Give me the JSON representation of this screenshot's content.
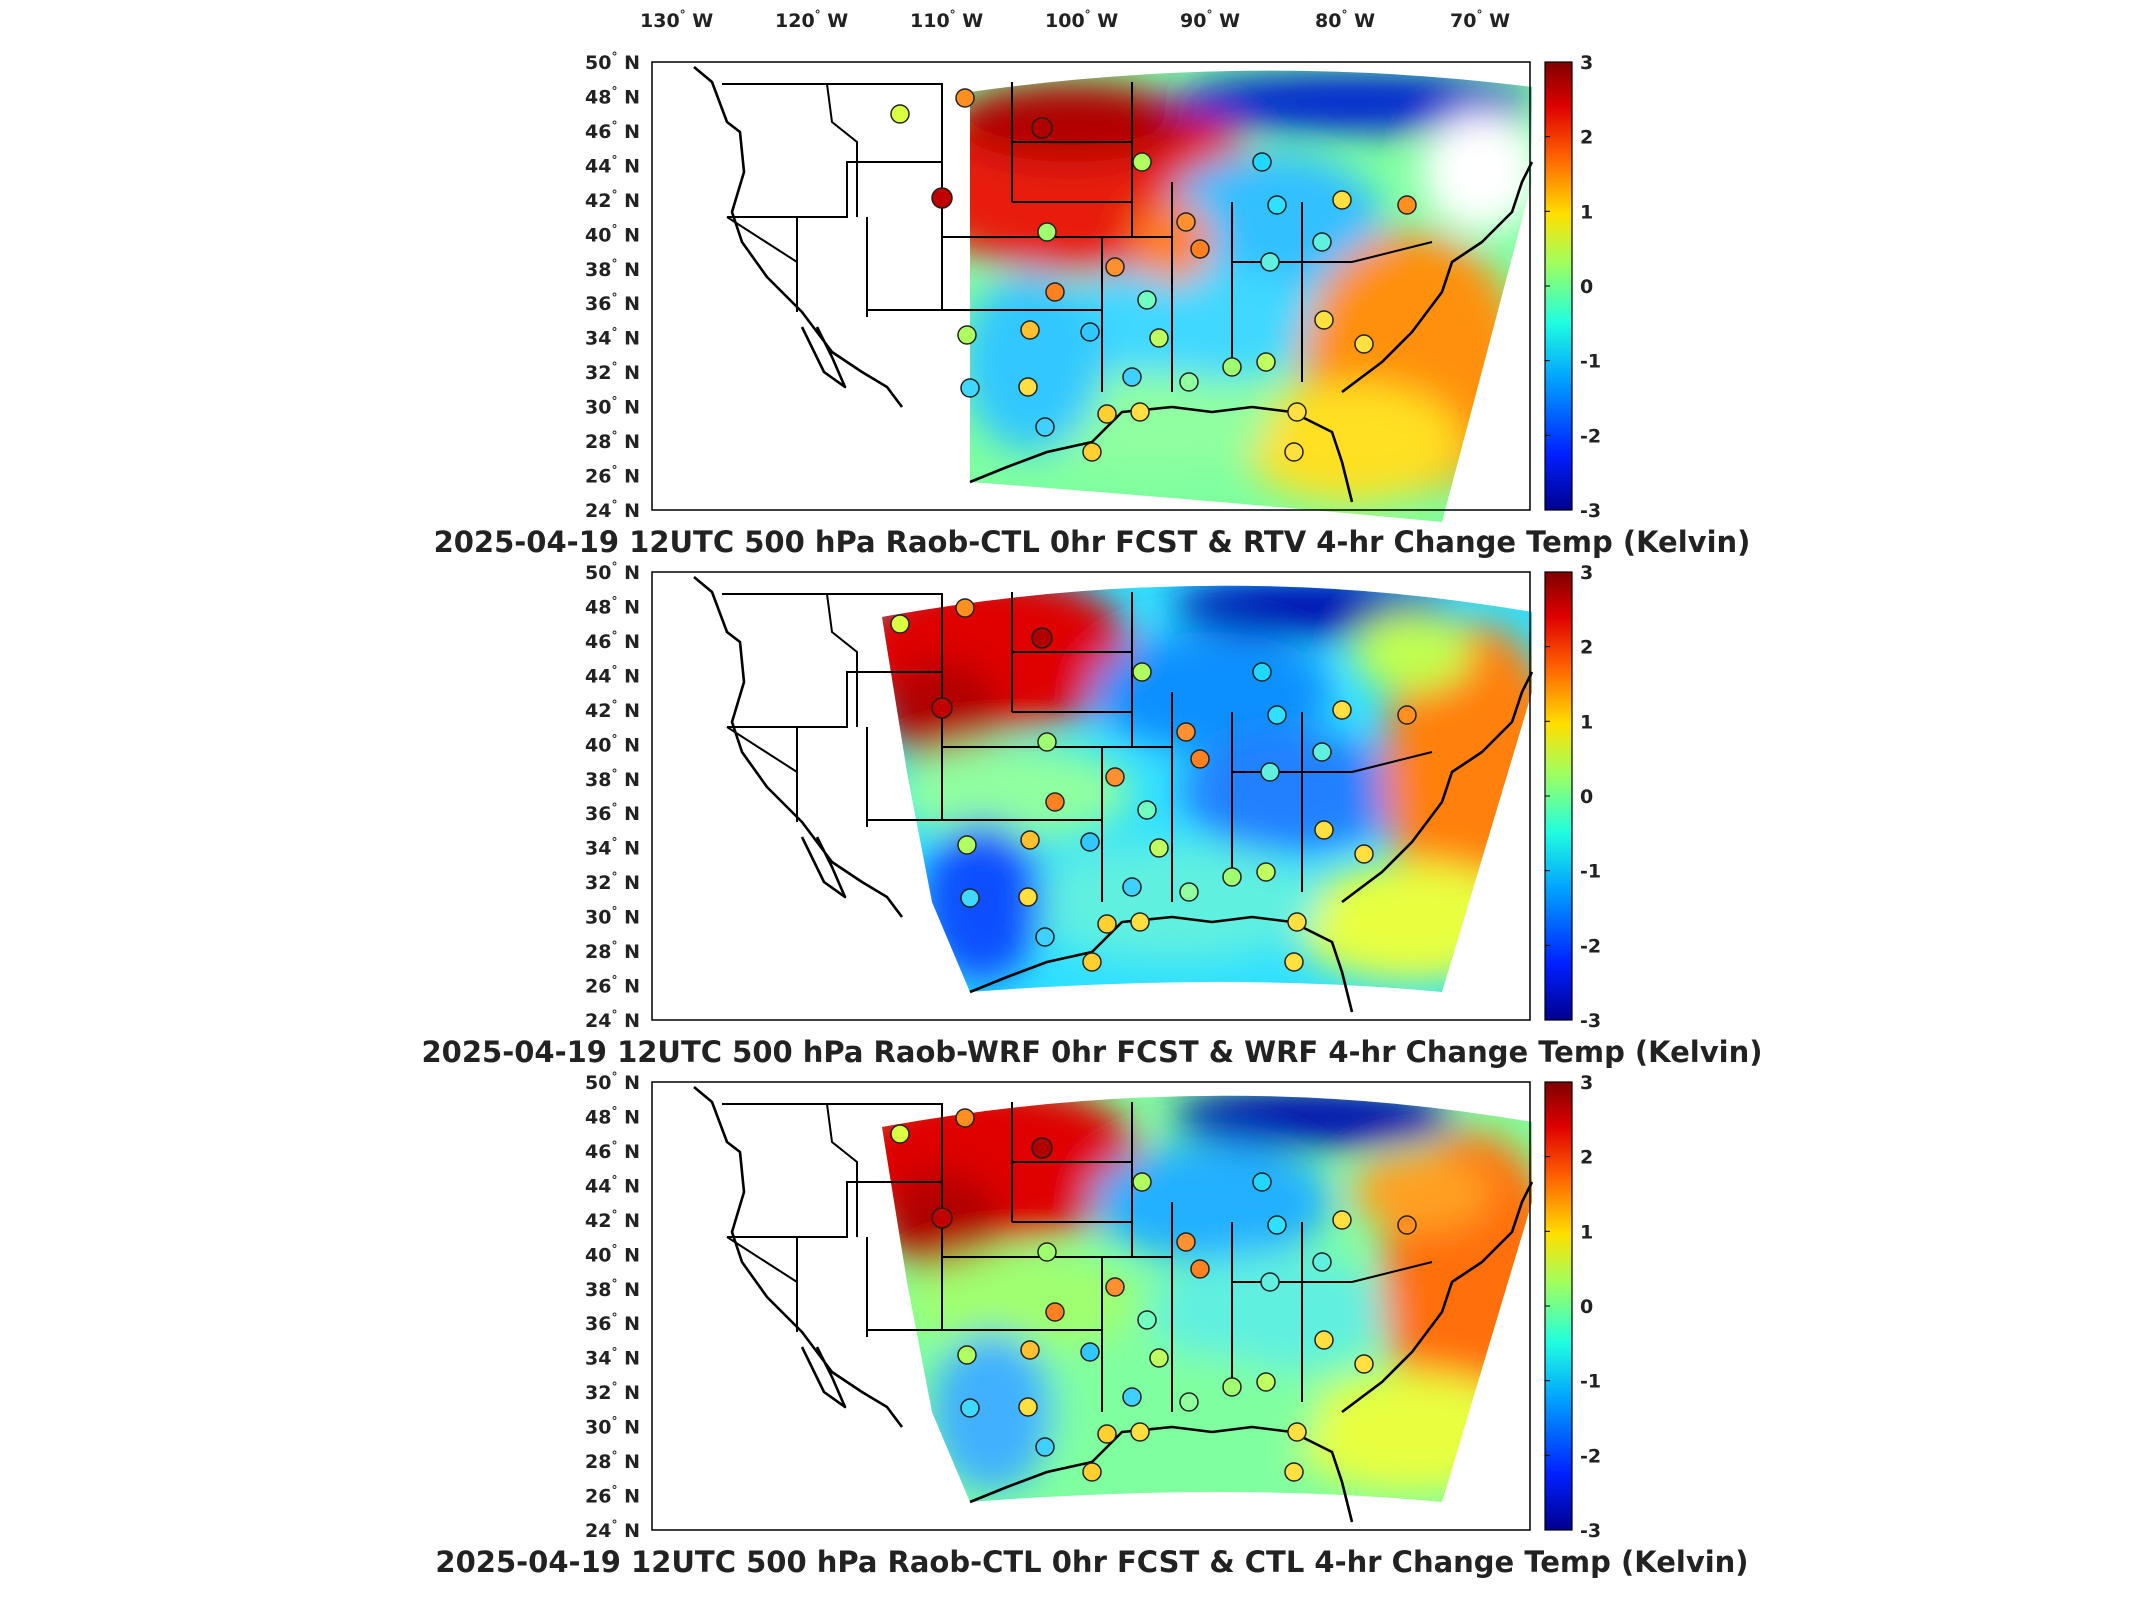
{
  "lon_labels": [
    {
      "deg": "130",
      "hem": "W"
    },
    {
      "deg": "120",
      "hem": "W"
    },
    {
      "deg": "110",
      "hem": "W"
    },
    {
      "deg": "100",
      "hem": "W"
    },
    {
      "deg": "90",
      "hem": "W"
    },
    {
      "deg": "80",
      "hem": "W"
    },
    {
      "deg": "70",
      "hem": "W"
    }
  ],
  "lat_labels": [
    {
      "deg": "50",
      "hem": "N"
    },
    {
      "deg": "48",
      "hem": "N"
    },
    {
      "deg": "46",
      "hem": "N"
    },
    {
      "deg": "44",
      "hem": "N"
    },
    {
      "deg": "42",
      "hem": "N"
    },
    {
      "deg": "40",
      "hem": "N"
    },
    {
      "deg": "38",
      "hem": "N"
    },
    {
      "deg": "36",
      "hem": "N"
    },
    {
      "deg": "34",
      "hem": "N"
    },
    {
      "deg": "32",
      "hem": "N"
    },
    {
      "deg": "30",
      "hem": "N"
    },
    {
      "deg": "28",
      "hem": "N"
    },
    {
      "deg": "26",
      "hem": "N"
    },
    {
      "deg": "24",
      "hem": "N"
    }
  ],
  "colorbar": {
    "min": -3,
    "max": 3,
    "ticks": [
      "3",
      "2",
      "1",
      "0",
      "-1",
      "-2",
      "-3"
    ],
    "colormap": [
      "#00008f",
      "#0020ff",
      "#00a0ff",
      "#20ffdf",
      "#9fff60",
      "#ffdf00",
      "#ff6000",
      "#df0000",
      "#800000"
    ]
  },
  "panels": [
    {
      "title": "2025-04-19 12UTC 500 hPa Raob-CTL 0hr FCST & RTV 4-hr Change Temp (Kelvin)"
    },
    {
      "title": "2025-04-19 12UTC 500 hPa Raob-WRF 0hr FCST & WRF 4-hr Change Temp (Kelvin)"
    },
    {
      "title": "2025-04-19 12UTC 500 hPa Raob-CTL 0hr FCST & CTL 4-hr Change Temp (Kelvin)"
    }
  ]
}
